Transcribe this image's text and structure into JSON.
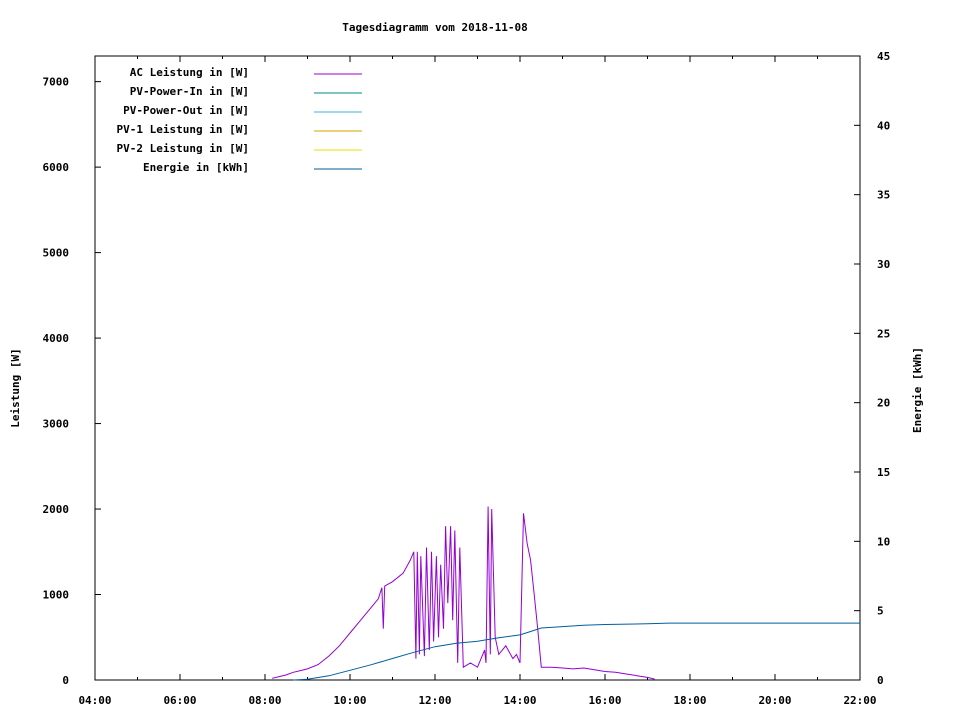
{
  "chart_data": {
    "type": "line",
    "title": "Tagesdiagramm vom 2018-11-08",
    "ylabel": "Leistung [W]",
    "y2label": "Energie [kWh]",
    "x_ticks": [
      "04:00",
      "06:00",
      "08:00",
      "10:00",
      "12:00",
      "14:00",
      "16:00",
      "18:00",
      "20:00",
      "22:00"
    ],
    "xlim": [
      "04:00",
      "22:00"
    ],
    "ylim": [
      0,
      7300
    ],
    "y2lim": [
      0,
      45
    ],
    "y_ticks": [
      0,
      1000,
      2000,
      3000,
      4000,
      5000,
      6000,
      7000
    ],
    "y2_ticks": [
      0,
      5,
      10,
      15,
      20,
      25,
      30,
      35,
      40,
      45
    ],
    "legend_position": "top-left",
    "grid": false,
    "series": [
      {
        "name": "AC Leistung in [W]",
        "axis": "left",
        "color": "#9400d3",
        "points": [
          [
            "08:10",
            20
          ],
          [
            "08:20",
            40
          ],
          [
            "08:30",
            60
          ],
          [
            "08:40",
            90
          ],
          [
            "08:50",
            110
          ],
          [
            "09:00",
            130
          ],
          [
            "09:15",
            180
          ],
          [
            "09:30",
            280
          ],
          [
            "09:45",
            400
          ],
          [
            "10:00",
            550
          ],
          [
            "10:15",
            700
          ],
          [
            "10:30",
            850
          ],
          [
            "10:40",
            950
          ],
          [
            "10:45",
            1080
          ],
          [
            "10:47",
            600
          ],
          [
            "10:49",
            1100
          ],
          [
            "11:00",
            1150
          ],
          [
            "11:15",
            1250
          ],
          [
            "11:25",
            1400
          ],
          [
            "11:30",
            1500
          ],
          [
            "11:33",
            250
          ],
          [
            "11:35",
            1500
          ],
          [
            "11:38",
            300
          ],
          [
            "11:40",
            1450
          ],
          [
            "11:45",
            280
          ],
          [
            "11:48",
            1550
          ],
          [
            "11:52",
            350
          ],
          [
            "11:55",
            1500
          ],
          [
            "11:58",
            450
          ],
          [
            "12:02",
            1450
          ],
          [
            "12:05",
            500
          ],
          [
            "12:08",
            1350
          ],
          [
            "12:12",
            600
          ],
          [
            "12:15",
            1800
          ],
          [
            "12:18",
            900
          ],
          [
            "12:22",
            1800
          ],
          [
            "12:25",
            700
          ],
          [
            "12:28",
            1750
          ],
          [
            "12:32",
            200
          ],
          [
            "12:35",
            1550
          ],
          [
            "12:40",
            150
          ],
          [
            "12:50",
            200
          ],
          [
            "13:00",
            150
          ],
          [
            "13:10",
            350
          ],
          [
            "13:12",
            200
          ],
          [
            "13:15",
            2030
          ],
          [
            "13:18",
            300
          ],
          [
            "13:20",
            2000
          ],
          [
            "13:25",
            500
          ],
          [
            "13:30",
            300
          ],
          [
            "13:40",
            400
          ],
          [
            "13:50",
            250
          ],
          [
            "13:55",
            300
          ],
          [
            "14:00",
            200
          ],
          [
            "14:05",
            1950
          ],
          [
            "14:10",
            1600
          ],
          [
            "14:15",
            1400
          ],
          [
            "14:20",
            1000
          ],
          [
            "14:25",
            600
          ],
          [
            "14:30",
            150
          ],
          [
            "14:45",
            150
          ],
          [
            "15:00",
            140
          ],
          [
            "15:15",
            130
          ],
          [
            "15:30",
            140
          ],
          [
            "15:45",
            120
          ],
          [
            "16:00",
            100
          ],
          [
            "16:15",
            90
          ],
          [
            "16:30",
            70
          ],
          [
            "16:45",
            50
          ],
          [
            "17:00",
            30
          ],
          [
            "17:10",
            10
          ]
        ]
      },
      {
        "name": "PV-Power-In in [W]",
        "axis": "left",
        "color": "#008b8b",
        "points": []
      },
      {
        "name": "PV-Power-Out in [W]",
        "axis": "left",
        "color": "#3cb4d8",
        "points": []
      },
      {
        "name": "PV-1 Leistung in [W]",
        "axis": "left",
        "color": "#d9a000",
        "points": []
      },
      {
        "name": "PV-2 Leistung in [W]",
        "axis": "left",
        "color": "#e8e000",
        "points": []
      },
      {
        "name": "Energie in [kWh]",
        "axis": "right",
        "color": "#005f9e",
        "points": [
          [
            "08:40",
            0
          ],
          [
            "09:00",
            0.05
          ],
          [
            "09:30",
            0.3
          ],
          [
            "10:00",
            0.7
          ],
          [
            "10:30",
            1.1
          ],
          [
            "11:00",
            1.55
          ],
          [
            "11:30",
            2.0
          ],
          [
            "12:00",
            2.4
          ],
          [
            "12:30",
            2.65
          ],
          [
            "13:00",
            2.8
          ],
          [
            "13:30",
            3.05
          ],
          [
            "14:00",
            3.25
          ],
          [
            "14:15",
            3.5
          ],
          [
            "14:30",
            3.75
          ],
          [
            "15:00",
            3.85
          ],
          [
            "15:30",
            3.95
          ],
          [
            "16:00",
            4.0
          ],
          [
            "17:00",
            4.05
          ],
          [
            "17:30",
            4.1
          ],
          [
            "22:00",
            4.1
          ]
        ]
      }
    ]
  }
}
